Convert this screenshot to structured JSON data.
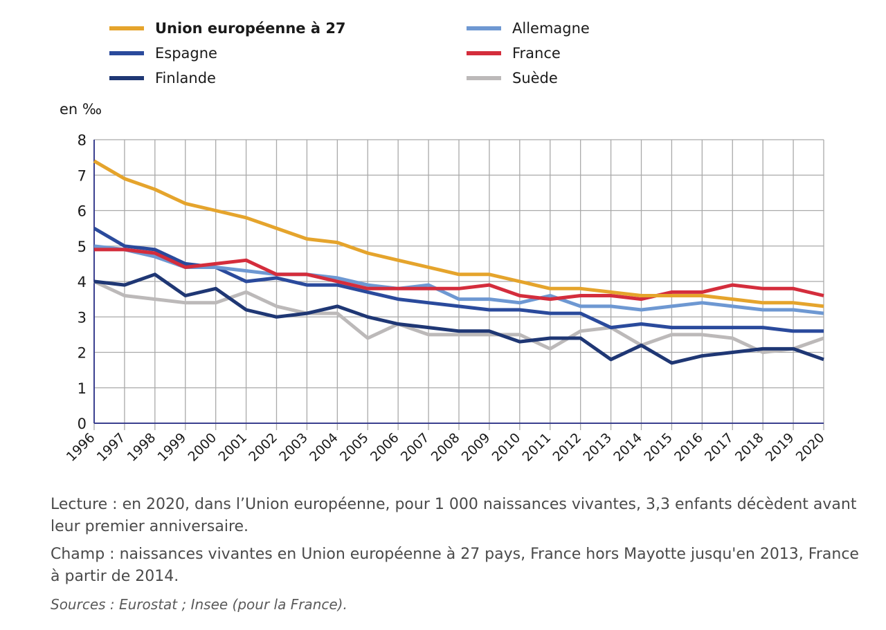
{
  "chart_data": {
    "type": "line",
    "title": "",
    "unit_label": "en ‰",
    "xlabel": "",
    "ylabel": "en ‰",
    "ylim": [
      0,
      8
    ],
    "yticks": [
      "0",
      "1",
      "2",
      "3",
      "4",
      "5",
      "6",
      "7",
      "8"
    ],
    "grid": true,
    "legend_position": "top",
    "x": [
      "1996",
      "1997",
      "1998",
      "1999",
      "2000",
      "2001",
      "2002",
      "2003",
      "2004",
      "2005",
      "2006",
      "2007",
      "2008",
      "2009",
      "2010",
      "2011",
      "2012",
      "2013",
      "2014",
      "2015",
      "2016",
      "2017",
      "2018",
      "2019",
      "2020"
    ],
    "series": [
      {
        "name": "Union européenne à 27",
        "color": "#e5a42c",
        "bold": true,
        "values": [
          7.4,
          6.9,
          6.6,
          6.2,
          6.0,
          5.8,
          5.5,
          5.2,
          5.1,
          4.8,
          4.6,
          4.4,
          4.2,
          4.2,
          4.0,
          3.8,
          3.8,
          3.7,
          3.6,
          3.6,
          3.6,
          3.5,
          3.4,
          3.4,
          3.3
        ]
      },
      {
        "name": "Allemagne",
        "color": "#6e98d2",
        "bold": false,
        "values": [
          5.0,
          4.9,
          4.7,
          4.4,
          4.4,
          4.3,
          4.2,
          4.2,
          4.1,
          3.9,
          3.8,
          3.9,
          3.5,
          3.5,
          3.4,
          3.6,
          3.3,
          3.3,
          3.2,
          3.3,
          3.4,
          3.3,
          3.2,
          3.2,
          3.1
        ]
      },
      {
        "name": "Espagne",
        "color": "#2a4a9c",
        "bold": false,
        "values": [
          5.5,
          5.0,
          4.9,
          4.5,
          4.4,
          4.0,
          4.1,
          3.9,
          3.9,
          3.7,
          3.5,
          3.4,
          3.3,
          3.2,
          3.2,
          3.1,
          3.1,
          2.7,
          2.8,
          2.7,
          2.7,
          2.7,
          2.7,
          2.6,
          2.6
        ]
      },
      {
        "name": "France",
        "color": "#d42d3c",
        "bold": false,
        "values": [
          4.9,
          4.9,
          4.8,
          4.4,
          4.5,
          4.6,
          4.2,
          4.2,
          4.0,
          3.8,
          3.8,
          3.8,
          3.8,
          3.9,
          3.6,
          3.5,
          3.6,
          3.6,
          3.5,
          3.7,
          3.7,
          3.9,
          3.8,
          3.8,
          3.6
        ]
      },
      {
        "name": "Finlande",
        "color": "#1f3774",
        "bold": false,
        "values": [
          4.0,
          3.9,
          4.2,
          3.6,
          3.8,
          3.2,
          3.0,
          3.1,
          3.3,
          3.0,
          2.8,
          2.7,
          2.6,
          2.6,
          2.3,
          2.4,
          2.4,
          1.8,
          2.2,
          1.7,
          1.9,
          2.0,
          2.1,
          2.1,
          1.8
        ]
      },
      {
        "name": "Suède",
        "color": "#bcb9b9",
        "bold": false,
        "values": [
          4.0,
          3.6,
          3.5,
          3.4,
          3.4,
          3.7,
          3.3,
          3.1,
          3.1,
          2.4,
          2.8,
          2.5,
          2.5,
          2.5,
          2.5,
          2.1,
          2.6,
          2.7,
          2.2,
          2.5,
          2.5,
          2.4,
          2.0,
          2.1,
          2.4
        ]
      }
    ]
  },
  "legend_order": [
    0,
    2,
    4,
    1,
    3,
    5
  ],
  "notes": {
    "lecture": "Lecture : en 2020, dans l’Union européenne, pour 1 000 naissances vivantes, 3,3 enfants décèdent avant leur premier anniversaire.",
    "champ": "Champ : naissances vivantes en Union européenne à 27 pays, France hors Mayotte jusqu'en 2013, France à partir de 2014.",
    "sources": "Sources : Eurostat ; Insee (pour la France)."
  },
  "colors": {
    "grid": "#a9a9a9",
    "axis": "#3a3f8f",
    "text": "#1a1a1a",
    "notes": "#4a4a4a"
  }
}
